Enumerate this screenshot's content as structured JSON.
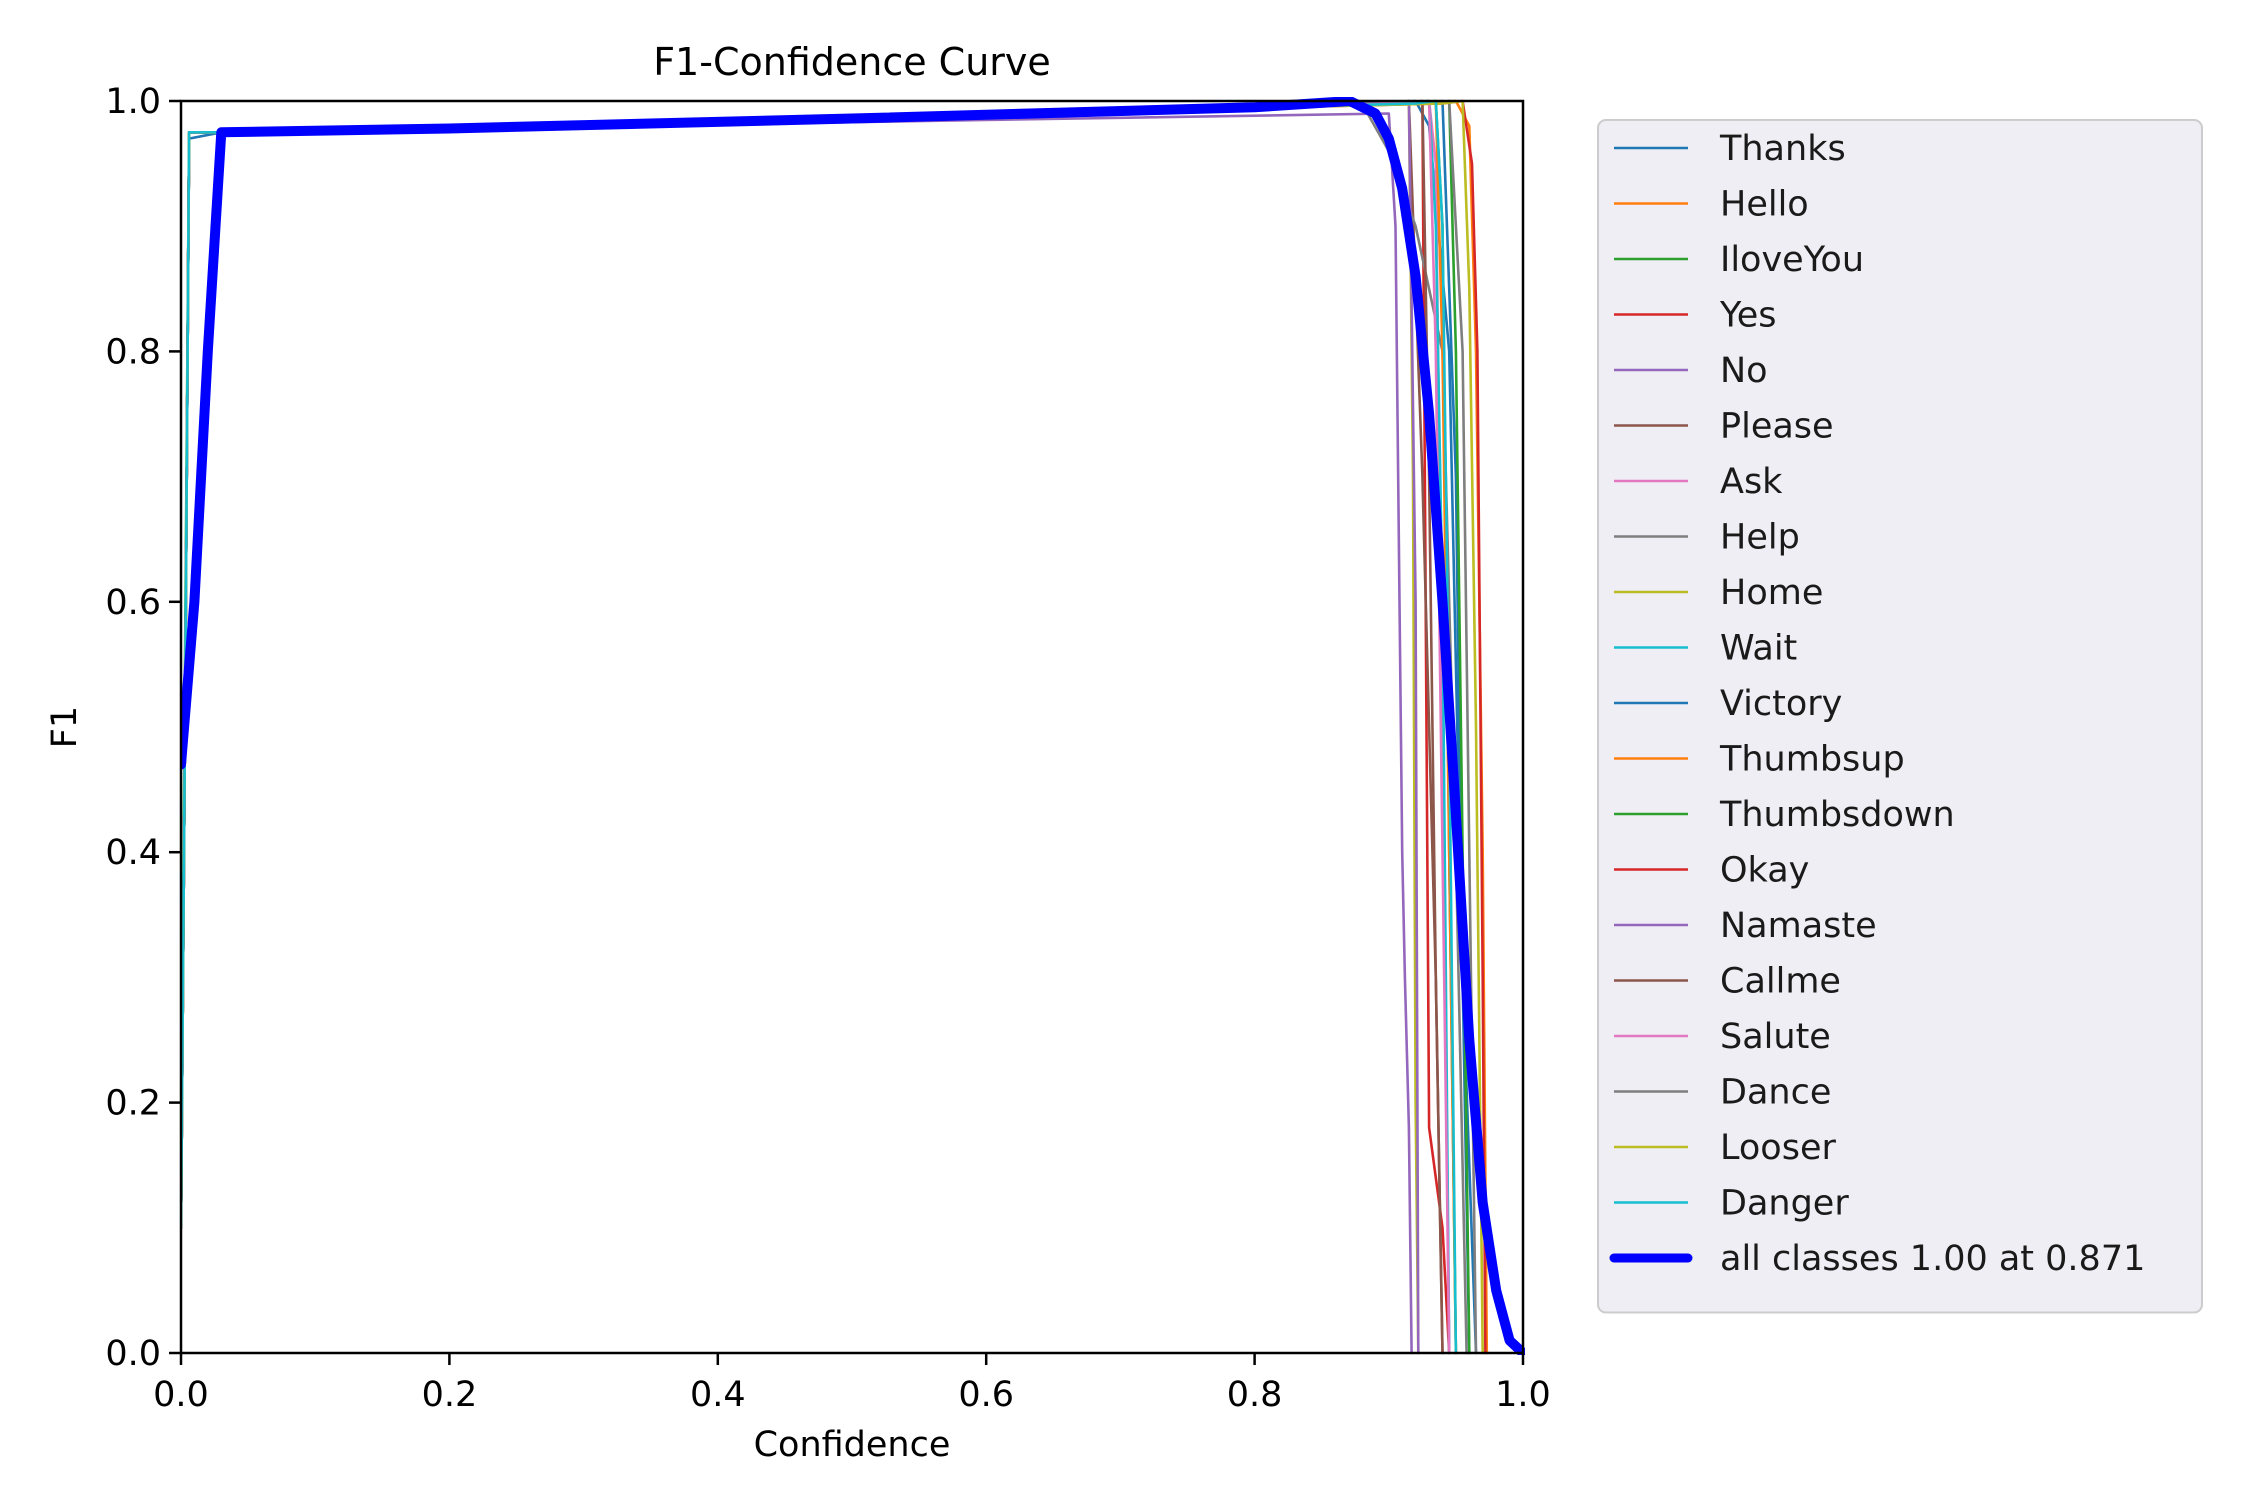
{
  "chart_data": {
    "type": "line",
    "title": "F1-Confidence Curve",
    "xlabel": "Confidence",
    "ylabel": "F1",
    "xlim": [
      0,
      1
    ],
    "ylim": [
      0,
      1
    ],
    "xticks": [
      "0.0",
      "0.2",
      "0.4",
      "0.6",
      "0.8",
      "1.0"
    ],
    "yticks": [
      "0.0",
      "0.2",
      "0.4",
      "0.6",
      "0.8",
      "1.0"
    ],
    "grid": false,
    "legend_position": "outside-right",
    "series": [
      {
        "name": "Thanks",
        "color": "#1f77b4",
        "thick": false,
        "x": [
          0,
          0.003,
          0.006,
          0.03,
          0.88,
          0.92,
          0.93,
          0.945,
          0.955,
          0.965
        ],
        "y": [
          0.1,
          0.5,
          0.97,
          0.975,
          0.998,
          1.0,
          0.98,
          0.8,
          0.3,
          0
        ]
      },
      {
        "name": "Hello",
        "color": "#ff7f0e",
        "thick": false,
        "x": [
          0,
          0.003,
          0.006,
          0.03,
          0.9,
          0.95,
          0.96,
          0.965,
          0.97,
          0.973
        ],
        "y": [
          0.1,
          0.5,
          0.975,
          0.975,
          0.998,
          1.0,
          0.98,
          0.8,
          0.4,
          0
        ]
      },
      {
        "name": "IloveYou",
        "color": "#2ca02c",
        "thick": false,
        "x": [
          0,
          0.003,
          0.006,
          0.03,
          0.92,
          0.935,
          0.94,
          0.945,
          0.95
        ],
        "y": [
          0.1,
          0.55,
          0.975,
          0.975,
          0.998,
          1.0,
          0.9,
          0.4,
          0
        ]
      },
      {
        "name": "Yes",
        "color": "#d62728",
        "thick": false,
        "x": [
          0,
          0.003,
          0.006,
          0.03,
          0.9,
          0.925,
          0.93,
          0.94,
          0.945
        ],
        "y": [
          0.1,
          0.5,
          0.975,
          0.975,
          0.998,
          1.0,
          0.18,
          0.1,
          0
        ]
      },
      {
        "name": "No",
        "color": "#9467bd",
        "thick": false,
        "x": [
          0,
          0.003,
          0.006,
          0.03,
          0.9,
          0.905,
          0.908,
          0.91,
          0.912,
          0.915,
          0.917
        ],
        "y": [
          0.1,
          0.5,
          0.975,
          0.975,
          0.99,
          0.9,
          0.6,
          0.4,
          0.3,
          0.18,
          0
        ]
      },
      {
        "name": "Please",
        "color": "#8c564b",
        "thick": false,
        "x": [
          0,
          0.003,
          0.006,
          0.03,
          0.9,
          0.915,
          0.925,
          0.935,
          0.94
        ],
        "y": [
          0.1,
          0.5,
          0.975,
          0.975,
          0.998,
          1.0,
          0.7,
          0.3,
          0
        ]
      },
      {
        "name": "Ask",
        "color": "#e377c2",
        "thick": false,
        "x": [
          0,
          0.003,
          0.006,
          0.03,
          0.9,
          0.93,
          0.935,
          0.94,
          0.945
        ],
        "y": [
          0.1,
          0.5,
          0.975,
          0.975,
          0.998,
          1.0,
          0.95,
          0.5,
          0
        ]
      },
      {
        "name": "Help",
        "color": "#7f7f7f",
        "thick": false,
        "x": [
          0,
          0.003,
          0.006,
          0.03,
          0.88,
          0.9,
          0.92,
          0.94,
          0.95,
          0.958
        ],
        "y": [
          0.1,
          0.5,
          0.975,
          0.975,
          0.998,
          0.96,
          0.9,
          0.8,
          0.4,
          0
        ]
      },
      {
        "name": "Home",
        "color": "#bcbd22",
        "thick": false,
        "x": [
          0,
          0.003,
          0.006,
          0.03,
          0.9,
          0.915,
          0.918,
          0.92,
          0.922
        ],
        "y": [
          0.1,
          0.5,
          0.975,
          0.975,
          0.998,
          1.0,
          0.7,
          0.2,
          0
        ]
      },
      {
        "name": "Wait",
        "color": "#17becf",
        "thick": false,
        "x": [
          0,
          0.003,
          0.006,
          0.03,
          0.9,
          0.93,
          0.935,
          0.94,
          0.945
        ],
        "y": [
          0.1,
          0.5,
          0.975,
          0.975,
          0.998,
          1.0,
          0.9,
          0.6,
          0
        ]
      },
      {
        "name": "Victory",
        "color": "#1f77b4",
        "thick": false,
        "x": [
          0,
          0.003,
          0.006,
          0.03,
          0.92,
          0.94,
          0.95,
          0.955,
          0.96
        ],
        "y": [
          0.1,
          0.5,
          0.975,
          0.975,
          0.998,
          1.0,
          0.7,
          0.3,
          0
        ]
      },
      {
        "name": "Thumbsup",
        "color": "#ff7f0e",
        "thick": false,
        "x": [
          0,
          0.003,
          0.006,
          0.03,
          0.92,
          0.935,
          0.94,
          0.945,
          0.95
        ],
        "y": [
          0.1,
          0.5,
          0.975,
          0.975,
          0.998,
          1.0,
          0.8,
          0.4,
          0
        ]
      },
      {
        "name": "Thumbsdown",
        "color": "#2ca02c",
        "thick": false,
        "x": [
          0,
          0.003,
          0.006,
          0.03,
          0.93,
          0.945,
          0.95,
          0.955,
          0.96
        ],
        "y": [
          0.1,
          0.5,
          0.975,
          0.975,
          0.998,
          1.0,
          0.8,
          0.4,
          0
        ]
      },
      {
        "name": "Okay",
        "color": "#d62728",
        "thick": false,
        "x": [
          0,
          0.003,
          0.006,
          0.03,
          0.94,
          0.955,
          0.962,
          0.966,
          0.97,
          0.972
        ],
        "y": [
          0.1,
          0.5,
          0.975,
          0.975,
          0.998,
          1.0,
          0.95,
          0.8,
          0.3,
          0
        ]
      },
      {
        "name": "Namaste",
        "color": "#9467bd",
        "thick": false,
        "x": [
          0,
          0.003,
          0.006,
          0.03,
          0.9,
          0.915,
          0.92,
          0.922
        ],
        "y": [
          0.1,
          0.5,
          0.975,
          0.975,
          0.998,
          1.0,
          0.6,
          0
        ]
      },
      {
        "name": "Callme",
        "color": "#8c564b",
        "thick": false,
        "x": [
          0,
          0.003,
          0.006,
          0.03,
          0.9,
          0.925,
          0.93,
          0.935,
          0.94
        ],
        "y": [
          0.1,
          0.5,
          0.975,
          0.975,
          0.998,
          1.0,
          0.7,
          0.3,
          0
        ]
      },
      {
        "name": "Salute",
        "color": "#e377c2",
        "thick": false,
        "x": [
          0,
          0.003,
          0.006,
          0.03,
          0.9,
          0.93,
          0.935,
          0.94,
          0.945
        ],
        "y": [
          0.1,
          0.5,
          0.975,
          0.975,
          0.998,
          1.0,
          0.8,
          0.4,
          0
        ]
      },
      {
        "name": "Dance",
        "color": "#7f7f7f",
        "thick": false,
        "x": [
          0,
          0.003,
          0.006,
          0.03,
          0.93,
          0.945,
          0.955,
          0.96,
          0.965
        ],
        "y": [
          0.1,
          0.5,
          0.975,
          0.975,
          0.998,
          1.0,
          0.8,
          0.4,
          0
        ]
      },
      {
        "name": "Looser",
        "color": "#bcbd22",
        "thick": false,
        "x": [
          0,
          0.003,
          0.006,
          0.03,
          0.94,
          0.955,
          0.96,
          0.965,
          0.97
        ],
        "y": [
          0.1,
          0.5,
          0.975,
          0.975,
          0.998,
          1.0,
          0.85,
          0.5,
          0
        ]
      },
      {
        "name": "Danger",
        "color": "#17becf",
        "thick": false,
        "x": [
          0,
          0.003,
          0.006,
          0.03,
          0.92,
          0.935,
          0.94,
          0.945,
          0.95
        ],
        "y": [
          0.1,
          0.5,
          0.975,
          0.975,
          0.998,
          1.0,
          0.9,
          0.5,
          0
        ]
      },
      {
        "name": "all classes 1.00 at 0.871",
        "color": "#0000ff",
        "thick": true,
        "x": [
          0,
          0.01,
          0.02,
          0.03,
          0.2,
          0.5,
          0.8,
          0.871,
          0.89,
          0.9,
          0.91,
          0.92,
          0.93,
          0.94,
          0.95,
          0.96,
          0.97,
          0.98,
          0.99,
          1.0
        ],
        "y": [
          0.47,
          0.6,
          0.8,
          0.975,
          0.978,
          0.986,
          0.995,
          1.0,
          0.99,
          0.97,
          0.93,
          0.86,
          0.75,
          0.6,
          0.43,
          0.25,
          0.12,
          0.05,
          0.01,
          0
        ]
      }
    ]
  }
}
